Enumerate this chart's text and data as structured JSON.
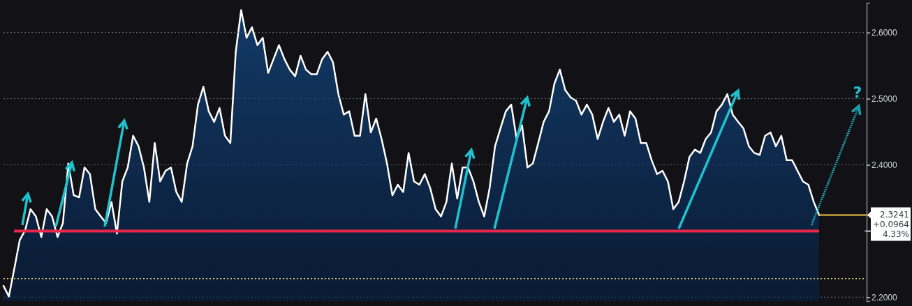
{
  "chart_data": {
    "type": "area",
    "categories": [
      null,
      null,
      null,
      null,
      null,
      null,
      null,
      null,
      null,
      null,
      null,
      null,
      null,
      null,
      null,
      null,
      null,
      null,
      null,
      null,
      null,
      null,
      null,
      null,
      null,
      null,
      null,
      null,
      null,
      null,
      null,
      null,
      null,
      null,
      null,
      null,
      null,
      null,
      null,
      null,
      null,
      null,
      null,
      null,
      null,
      null,
      null,
      null,
      null,
      null,
      null,
      null,
      null,
      null,
      null,
      null,
      null,
      null,
      null,
      null,
      null,
      null,
      null,
      null,
      null,
      null,
      null,
      null,
      null,
      null,
      null,
      null,
      null,
      null,
      null,
      null,
      null,
      null,
      null,
      null,
      null,
      null,
      null,
      null,
      null,
      null,
      null,
      null,
      null,
      null,
      null,
      null,
      null,
      null,
      null,
      null,
      null,
      null,
      null,
      null,
      null,
      null,
      null,
      null,
      null,
      null,
      null,
      null,
      null,
      null,
      null,
      null,
      null,
      null,
      null,
      null,
      null,
      null,
      null,
      null,
      null,
      null,
      null,
      null,
      null,
      null,
      null,
      null,
      null,
      null,
      null,
      null,
      null,
      null,
      null,
      null,
      null,
      null,
      null,
      null,
      null,
      null,
      null,
      null,
      null,
      null,
      null,
      null,
      null,
      null,
      null,
      null
    ],
    "series": [
      {
        "color": "#ffffff",
        "values": [
          2.217,
          2.201,
          2.243,
          2.286,
          2.301,
          2.333,
          2.322,
          2.291,
          2.333,
          2.322,
          2.291,
          2.312,
          2.402,
          2.354,
          2.351,
          2.396,
          2.386,
          2.333,
          2.322,
          2.312,
          2.344,
          2.296,
          2.375,
          2.396,
          2.444,
          2.428,
          2.396,
          2.344,
          2.433,
          2.375,
          2.391,
          2.396,
          2.359,
          2.344,
          2.402,
          2.428,
          2.491,
          2.518,
          2.481,
          2.465,
          2.486,
          2.444,
          2.433,
          2.571,
          2.634,
          2.592,
          2.608,
          2.581,
          2.592,
          2.539,
          2.56,
          2.581,
          2.56,
          2.544,
          2.534,
          2.565,
          2.544,
          2.537,
          2.537,
          2.56,
          2.571,
          2.555,
          2.507,
          2.476,
          2.481,
          2.444,
          2.444,
          2.507,
          2.449,
          2.47,
          2.439,
          2.402,
          2.354,
          2.37,
          2.359,
          2.418,
          2.375,
          2.37,
          2.386,
          2.365,
          2.333,
          2.322,
          2.344,
          2.402,
          2.349,
          2.396,
          2.396,
          2.375,
          2.344,
          2.322,
          2.365,
          2.428,
          2.455,
          2.481,
          2.491,
          2.439,
          2.46,
          2.396,
          2.402,
          2.433,
          2.465,
          2.481,
          2.523,
          2.544,
          2.513,
          2.502,
          2.497,
          2.476,
          2.491,
          2.476,
          2.439,
          2.465,
          2.486,
          2.465,
          2.476,
          2.444,
          2.481,
          2.47,
          2.433,
          2.433,
          2.407,
          2.386,
          2.391,
          2.375,
          2.333,
          2.344,
          2.375,
          2.412,
          2.423,
          2.418,
          2.439,
          2.449,
          2.481,
          2.491,
          2.507,
          2.476,
          2.465,
          2.455,
          2.428,
          2.418,
          2.415,
          2.444,
          2.449,
          2.428,
          2.444,
          2.407,
          2.407,
          2.391,
          2.375,
          2.37,
          2.344,
          2.3241
        ]
      }
    ],
    "ylim": [
      2.194,
      2.645
    ],
    "yticks": [
      {
        "value": 2.2,
        "label": "2.2000"
      },
      {
        "value": 2.3,
        "label": null
      },
      {
        "value": 2.4,
        "label": "2.4000"
      },
      {
        "value": 2.5,
        "label": "2.5000"
      },
      {
        "value": 2.6,
        "label": "2.6000"
      }
    ],
    "grid": "y",
    "ref_lines": [
      {
        "axis": "y",
        "value": 2.3,
        "color": "#e8274b",
        "line_style": "solid"
      },
      {
        "axis": "y",
        "value": 2.228,
        "color": "#d9d27a",
        "line_style": "dotted"
      },
      {
        "axis": "y",
        "value": 2.3241,
        "color": "#f2c744",
        "line_style": "solid",
        "label": "2.3241"
      }
    ],
    "annotations": [
      "+0.0964",
      "4.33%",
      "?"
    ]
  }
}
